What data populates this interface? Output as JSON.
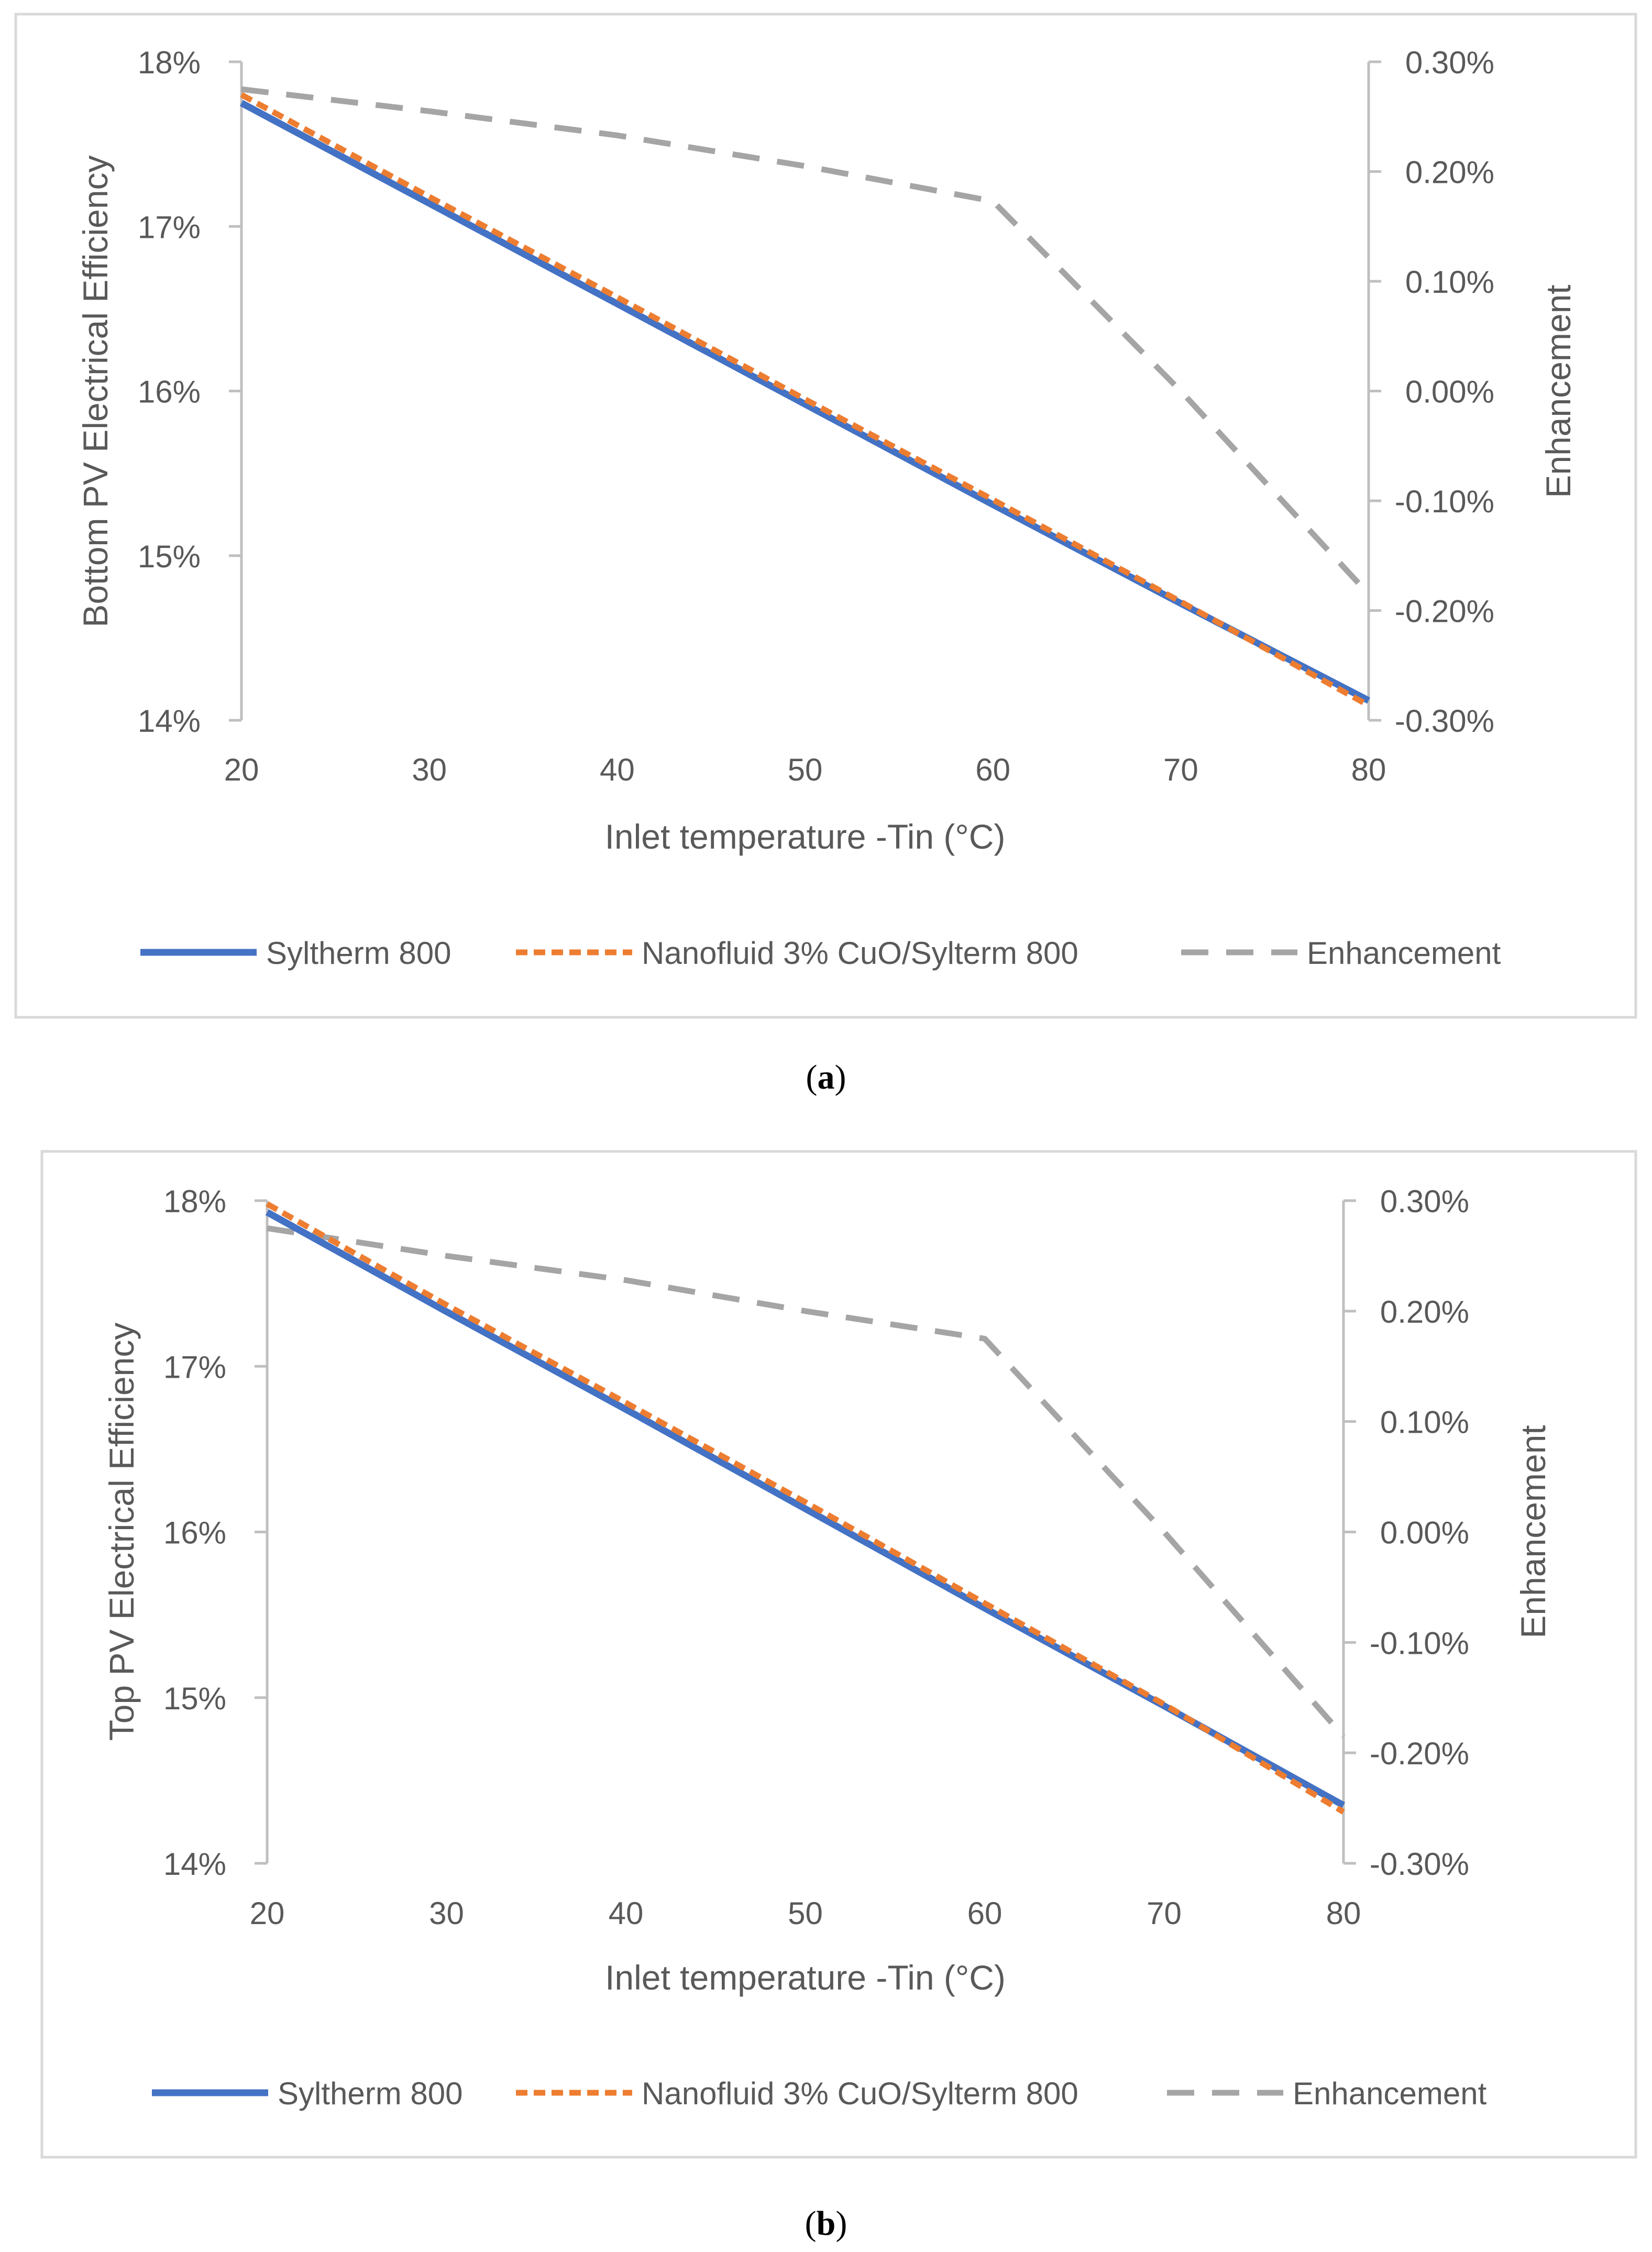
{
  "chart_data": [
    {
      "type": "line",
      "panel_label": "a",
      "x": [
        20,
        30,
        40,
        50,
        60,
        70,
        80
      ],
      "xlabel": "Inlet temperature -Tin (°C)",
      "ylabel": "Bottom PV Electrical Efficiency",
      "y2label": "Enhancement",
      "xlim": [
        20,
        80
      ],
      "ylim": [
        14,
        18
      ],
      "y2lim": [
        -0.3,
        0.3
      ],
      "x_ticks": [
        "20",
        "30",
        "40",
        "50",
        "60",
        "70",
        "80"
      ],
      "y_ticks": [
        "14%",
        "15%",
        "16%",
        "17%",
        "18%"
      ],
      "y2_ticks": [
        "-0.30%",
        "-0.20%",
        "-0.10%",
        "0.00%",
        "0.10%",
        "0.20%",
        "0.30%"
      ],
      "series": [
        {
          "name": "Syltherm 800",
          "axis": "left",
          "color": "#4472C4",
          "dash": "solid",
          "values": [
            17.75,
            17.14,
            16.53,
            15.92,
            15.31,
            14.71,
            14.12
          ]
        },
        {
          "name": "Nanofluid 3% CuO/Sylterm 800",
          "axis": "left",
          "color": "#ED7D31",
          "dash": "short",
          "values": [
            17.8,
            17.18,
            16.57,
            15.95,
            15.34,
            14.72,
            14.09
          ]
        },
        {
          "name": "Enhancement",
          "axis": "right",
          "color": "#A5A5A5",
          "dash": "long",
          "values": [
            0.275,
            0.255,
            0.233,
            0.205,
            0.173,
            0.0,
            -0.185
          ]
        }
      ],
      "legend": [
        "Syltherm 800",
        "Nanofluid 3% CuO/Sylterm 800",
        "Enhancement"
      ],
      "legend_position": "bottom"
    },
    {
      "type": "line",
      "panel_label": "b",
      "x": [
        20,
        30,
        40,
        50,
        60,
        70,
        80
      ],
      "xlabel": "Inlet temperature -Tin (°C)",
      "ylabel": "Top PV Electrical Efficiency",
      "y2label": "Enhancement",
      "xlim": [
        20,
        80
      ],
      "ylim": [
        14,
        18
      ],
      "y2lim": [
        -0.3,
        0.3
      ],
      "x_ticks": [
        "20",
        "30",
        "40",
        "50",
        "60",
        "70",
        "80"
      ],
      "y_ticks": [
        "14%",
        "15%",
        "16%",
        "17%",
        "18%"
      ],
      "y2_ticks": [
        "-0.30%",
        "-0.20%",
        "-0.10%",
        "0.00%",
        "0.10%",
        "0.20%",
        "0.30%"
      ],
      "series": [
        {
          "name": "Syltherm 800",
          "axis": "left",
          "color": "#4472C4",
          "dash": "solid",
          "values": [
            17.93,
            17.33,
            16.74,
            16.14,
            15.54,
            14.95,
            14.35
          ]
        },
        {
          "name": "Nanofluid 3% CuO/Sylterm 800",
          "axis": "left",
          "color": "#ED7D31",
          "dash": "short",
          "values": [
            17.98,
            17.37,
            16.78,
            16.18,
            15.57,
            14.96,
            14.31
          ]
        },
        {
          "name": "Enhancement",
          "axis": "right",
          "color": "#A5A5A5",
          "dash": "long",
          "values": [
            0.275,
            0.25,
            0.228,
            0.2,
            0.175,
            0.0,
            -0.185
          ]
        }
      ],
      "legend": [
        "Syltherm 800",
        "Nanofluid 3% CuO/Sylterm 800",
        "Enhancement"
      ],
      "legend_position": "bottom"
    }
  ]
}
